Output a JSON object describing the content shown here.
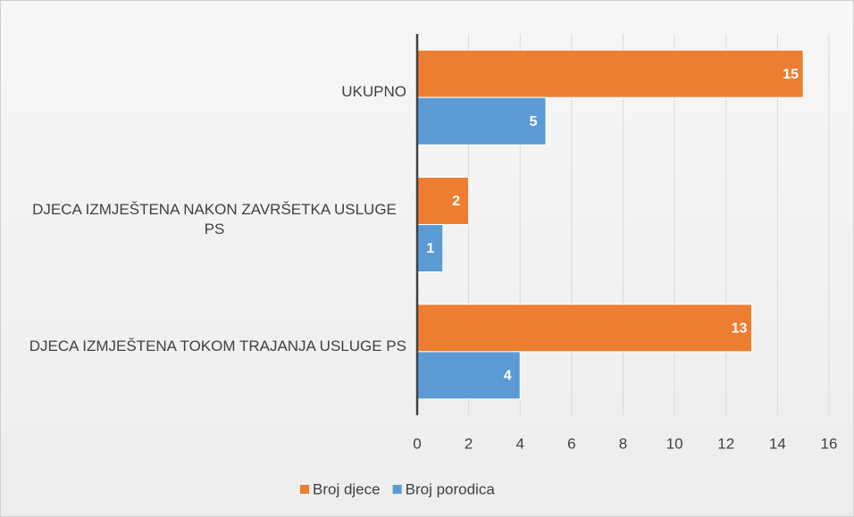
{
  "chart_data": {
    "type": "bar",
    "orientation": "horizontal",
    "categories": [
      "UKUPNO",
      "DJECA IZMJEŠTENA NAKON ZAVRŠETKA USLUGE PS",
      "DJECA IZMJEŠTENA TOKOM TRAJANJA USLUGE PS"
    ],
    "series": [
      {
        "name": "Broj djece",
        "color": "#ed7d31",
        "values": [
          15,
          2,
          13
        ]
      },
      {
        "name": "Broj porodica",
        "color": "#5b9bd5",
        "values": [
          5,
          1,
          4
        ]
      }
    ],
    "xlim": [
      0,
      16
    ],
    "xticks": [
      0,
      2,
      4,
      6,
      8,
      10,
      12,
      14,
      16
    ],
    "grid": true,
    "legend": "bottom"
  }
}
